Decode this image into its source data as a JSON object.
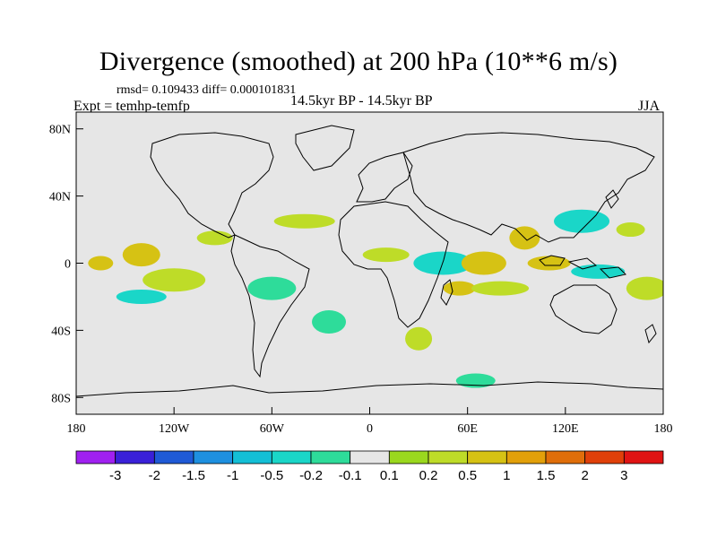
{
  "header": {
    "title": "Divergence (smoothed) at 200 hPa (10**6 m/s)",
    "stats": "rmsd= 0.109433 diff= 0.000101831",
    "expt": "Expt = temhp-temfp",
    "period": "14.5kyr BP - 14.5kyr BP",
    "season": "JJA"
  },
  "axes": {
    "y_ticks": [
      "80N",
      "40N",
      "0",
      "40S",
      "80S"
    ],
    "x_ticks": [
      "180",
      "120W",
      "60W",
      "0",
      "60E",
      "120E",
      "180"
    ]
  },
  "map": {
    "projection": "cylindrical equidistant",
    "lon_range": [
      -180,
      180
    ],
    "lat_range": [
      -90,
      90
    ],
    "background_color": "#e6e6e6",
    "coastline_color": "#000000"
  },
  "colorbar": {
    "levels": [
      "-3",
      "-2",
      "-1.5",
      "-1",
      "-0.5",
      "-0.2",
      "-0.1",
      "0.1",
      "0.2",
      "0.5",
      "1",
      "1.5",
      "2",
      "3"
    ],
    "colors": [
      "#a020f0",
      "#3a20d8",
      "#1f5ad6",
      "#1e90e0",
      "#14bfd6",
      "#1ad6c8",
      "#2edc9a",
      "#e6e6e6",
      "#9ad81e",
      "#bedc28",
      "#d6c214",
      "#e2a00a",
      "#e06e0a",
      "#e0400a",
      "#e01414"
    ]
  },
  "chart_data": {
    "type": "heatmap",
    "title": "Divergence (smoothed) at 200 hPa (10**6 m/s)",
    "units": "10**6 m/s",
    "x_range": [
      -180,
      180
    ],
    "y_range": [
      -90,
      90
    ],
    "features": [
      {
        "lon": -165,
        "lat": 0,
        "value": 0.5
      },
      {
        "lon": -140,
        "lat": 5,
        "value": 0.5
      },
      {
        "lon": -140,
        "lat": -20,
        "value": -0.5
      },
      {
        "lon": -120,
        "lat": -10,
        "value": 0.2
      },
      {
        "lon": -95,
        "lat": 15,
        "value": 0.2
      },
      {
        "lon": -60,
        "lat": -15,
        "value": -0.2
      },
      {
        "lon": -40,
        "lat": 25,
        "value": 0.2
      },
      {
        "lon": -25,
        "lat": -35,
        "value": -0.2
      },
      {
        "lon": 10,
        "lat": 5,
        "value": 0.2
      },
      {
        "lon": 45,
        "lat": 0,
        "value": -0.5
      },
      {
        "lon": 55,
        "lat": -15,
        "value": 0.5
      },
      {
        "lon": 70,
        "lat": 0,
        "value": 0.5
      },
      {
        "lon": 80,
        "lat": -15,
        "value": 0.2
      },
      {
        "lon": 95,
        "lat": 15,
        "value": 0.5
      },
      {
        "lon": 110,
        "lat": 0,
        "value": 0.5
      },
      {
        "lon": 130,
        "lat": 25,
        "value": -0.5
      },
      {
        "lon": 160,
        "lat": 20,
        "value": 0.2
      },
      {
        "lon": 170,
        "lat": -15,
        "value": 0.2
      },
      {
        "lon": 140,
        "lat": -5,
        "value": -0.5
      },
      {
        "lon": 30,
        "lat": -45,
        "value": 0.2
      },
      {
        "lon": 65,
        "lat": -70,
        "value": -0.2
      }
    ]
  }
}
